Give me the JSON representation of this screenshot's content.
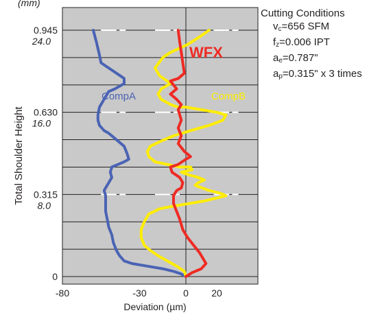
{
  "chart_data": {
    "type": "line",
    "title": "",
    "xlabel": "Deviation (µm)",
    "ylabel": "Total Shoulder Height",
    "y_unit_label": "(mm)",
    "xlim": [
      -80,
      40
    ],
    "ylim": [
      0,
      0.945
    ],
    "x_ticks": [
      -80,
      -30,
      0,
      20
    ],
    "x_tick_labels": [
      "-80",
      "-30",
      "0",
      "20"
    ],
    "y_ticks": [
      {
        "value": 0,
        "label": "0",
        "mm": ""
      },
      {
        "value": 0.315,
        "label": "0.315",
        "mm": "8.0"
      },
      {
        "value": 0.63,
        "label": "0.630",
        "mm": "16.0"
      },
      {
        "value": 0.945,
        "label": "0.945",
        "mm": "24.0"
      }
    ],
    "plot_background": "#c9c9c9",
    "series": [
      {
        "name": "CompA",
        "color": "#4a63b4",
        "points": [
          [
            -60,
            0.945
          ],
          [
            -58,
            0.9
          ],
          [
            -56,
            0.85
          ],
          [
            -55,
            0.82
          ],
          [
            -50,
            0.8
          ],
          [
            -45,
            0.78
          ],
          [
            -40,
            0.76
          ],
          [
            -40,
            0.74
          ],
          [
            -46,
            0.72
          ],
          [
            -50,
            0.71
          ],
          [
            -52,
            0.69
          ],
          [
            -54,
            0.67
          ],
          [
            -56,
            0.65
          ],
          [
            -57,
            0.62
          ],
          [
            -57,
            0.6
          ],
          [
            -56,
            0.58
          ],
          [
            -53,
            0.56
          ],
          [
            -50,
            0.55
          ],
          [
            -46,
            0.53
          ],
          [
            -42,
            0.51
          ],
          [
            -40,
            0.5
          ],
          [
            -38,
            0.47
          ],
          [
            -37,
            0.45
          ],
          [
            -40,
            0.44
          ],
          [
            -44,
            0.43
          ],
          [
            -48,
            0.42
          ],
          [
            -49,
            0.4
          ],
          [
            -48,
            0.38
          ],
          [
            -50,
            0.36
          ],
          [
            -52,
            0.34
          ],
          [
            -53,
            0.33
          ],
          [
            -52,
            0.31
          ],
          [
            -52,
            0.28
          ],
          [
            -52,
            0.25
          ],
          [
            -51,
            0.22
          ],
          [
            -50,
            0.19
          ],
          [
            -48,
            0.16
          ],
          [
            -47,
            0.13
          ],
          [
            -45,
            0.1
          ],
          [
            -43,
            0.08
          ],
          [
            -40,
            0.06
          ],
          [
            -35,
            0.05
          ],
          [
            -25,
            0.04
          ],
          [
            -15,
            0.03
          ],
          [
            -8,
            0.02
          ],
          [
            -3,
            0.01
          ],
          [
            0,
            0
          ]
        ]
      },
      {
        "name": "CompB",
        "color": "#ffed00",
        "points": [
          [
            15,
            0.945
          ],
          [
            9,
            0.92
          ],
          [
            1,
            0.89
          ],
          [
            -10,
            0.86
          ],
          [
            -15,
            0.84
          ],
          [
            -20,
            0.8
          ],
          [
            -17,
            0.77
          ],
          [
            -12,
            0.75
          ],
          [
            -10,
            0.74
          ],
          [
            -16,
            0.72
          ],
          [
            -18,
            0.7
          ],
          [
            -16,
            0.68
          ],
          [
            -10,
            0.66
          ],
          [
            -5,
            0.65
          ],
          [
            0,
            0.65
          ],
          [
            10,
            0.64
          ],
          [
            20,
            0.63
          ],
          [
            26,
            0.62
          ],
          [
            24,
            0.6
          ],
          [
            15,
            0.58
          ],
          [
            3,
            0.56
          ],
          [
            -8,
            0.54
          ],
          [
            -16,
            0.52
          ],
          [
            -23,
            0.5
          ],
          [
            -25,
            0.48
          ],
          [
            -24,
            0.46
          ],
          [
            -20,
            0.44
          ],
          [
            -12,
            0.43
          ],
          [
            -4,
            0.42
          ],
          [
            3,
            0.42
          ],
          [
            4,
            0.41
          ],
          [
            -3,
            0.4
          ],
          [
            2,
            0.39
          ],
          [
            8,
            0.38
          ],
          [
            12,
            0.37
          ],
          [
            8,
            0.36
          ],
          [
            6,
            0.35
          ],
          [
            15,
            0.33
          ],
          [
            22,
            0.32
          ],
          [
            26,
            0.31
          ],
          [
            19,
            0.3
          ],
          [
            12,
            0.29
          ],
          [
            2,
            0.28
          ],
          [
            -8,
            0.27
          ],
          [
            -17,
            0.26
          ],
          [
            -24,
            0.24
          ],
          [
            -27,
            0.21
          ],
          [
            -29,
            0.18
          ],
          [
            -29,
            0.15
          ],
          [
            -27,
            0.12
          ],
          [
            -23,
            0.1
          ],
          [
            -18,
            0.08
          ],
          [
            -12,
            0.06
          ],
          [
            -6,
            0.04
          ],
          [
            -1,
            0.02
          ],
          [
            0,
            0
          ]
        ]
      },
      {
        "name": "",
        "color": "#ee2b24",
        "points": [
          [
            -5,
            0.945
          ],
          [
            -4,
            0.9
          ],
          [
            -3,
            0.86
          ],
          [
            -2,
            0.82
          ],
          [
            -1,
            0.78
          ],
          [
            -5,
            0.76
          ],
          [
            -10,
            0.75
          ],
          [
            -6,
            0.72
          ],
          [
            -10,
            0.7
          ],
          [
            -6,
            0.68
          ],
          [
            -3,
            0.66
          ],
          [
            -5,
            0.64
          ],
          [
            -3,
            0.6
          ],
          [
            -5,
            0.57
          ],
          [
            -3,
            0.54
          ],
          [
            -5,
            0.51
          ],
          [
            -1,
            0.48
          ],
          [
            3,
            0.46
          ],
          [
            0,
            0.45
          ],
          [
            -5,
            0.43
          ],
          [
            -10,
            0.42
          ],
          [
            -9,
            0.4
          ],
          [
            -4,
            0.38
          ],
          [
            -2,
            0.36
          ],
          [
            -3,
            0.34
          ],
          [
            -6,
            0.33
          ],
          [
            -8,
            0.31
          ],
          [
            -8,
            0.28
          ],
          [
            -6,
            0.25
          ],
          [
            -4,
            0.22
          ],
          [
            -2,
            0.18
          ],
          [
            1,
            0.15
          ],
          [
            5,
            0.12
          ],
          [
            9,
            0.09
          ],
          [
            13,
            0.05
          ],
          [
            10,
            0.03
          ],
          [
            4,
            0.015
          ],
          [
            0,
            0
          ]
        ]
      }
    ],
    "annotations": [
      {
        "text": "WFX",
        "series": 2,
        "color": "#ee2b24"
      },
      {
        "text": "CompA",
        "series": 0,
        "color": "#4a63b4"
      },
      {
        "text": "CompB",
        "series": 1,
        "color": "#ffed00"
      }
    ]
  },
  "conditions": {
    "title": "Cutting Conditions",
    "vc": {
      "base": "v",
      "sub": "c",
      "value": "=656 SFM"
    },
    "fz": {
      "base": "f",
      "sub": "z",
      "value": "=0.006 IPT"
    },
    "ae": {
      "base": "a",
      "sub": "e",
      "value": "=0.787\""
    },
    "ap": {
      "base": "a",
      "sub": "p",
      "value": "=0.315\" x 3 times"
    }
  }
}
